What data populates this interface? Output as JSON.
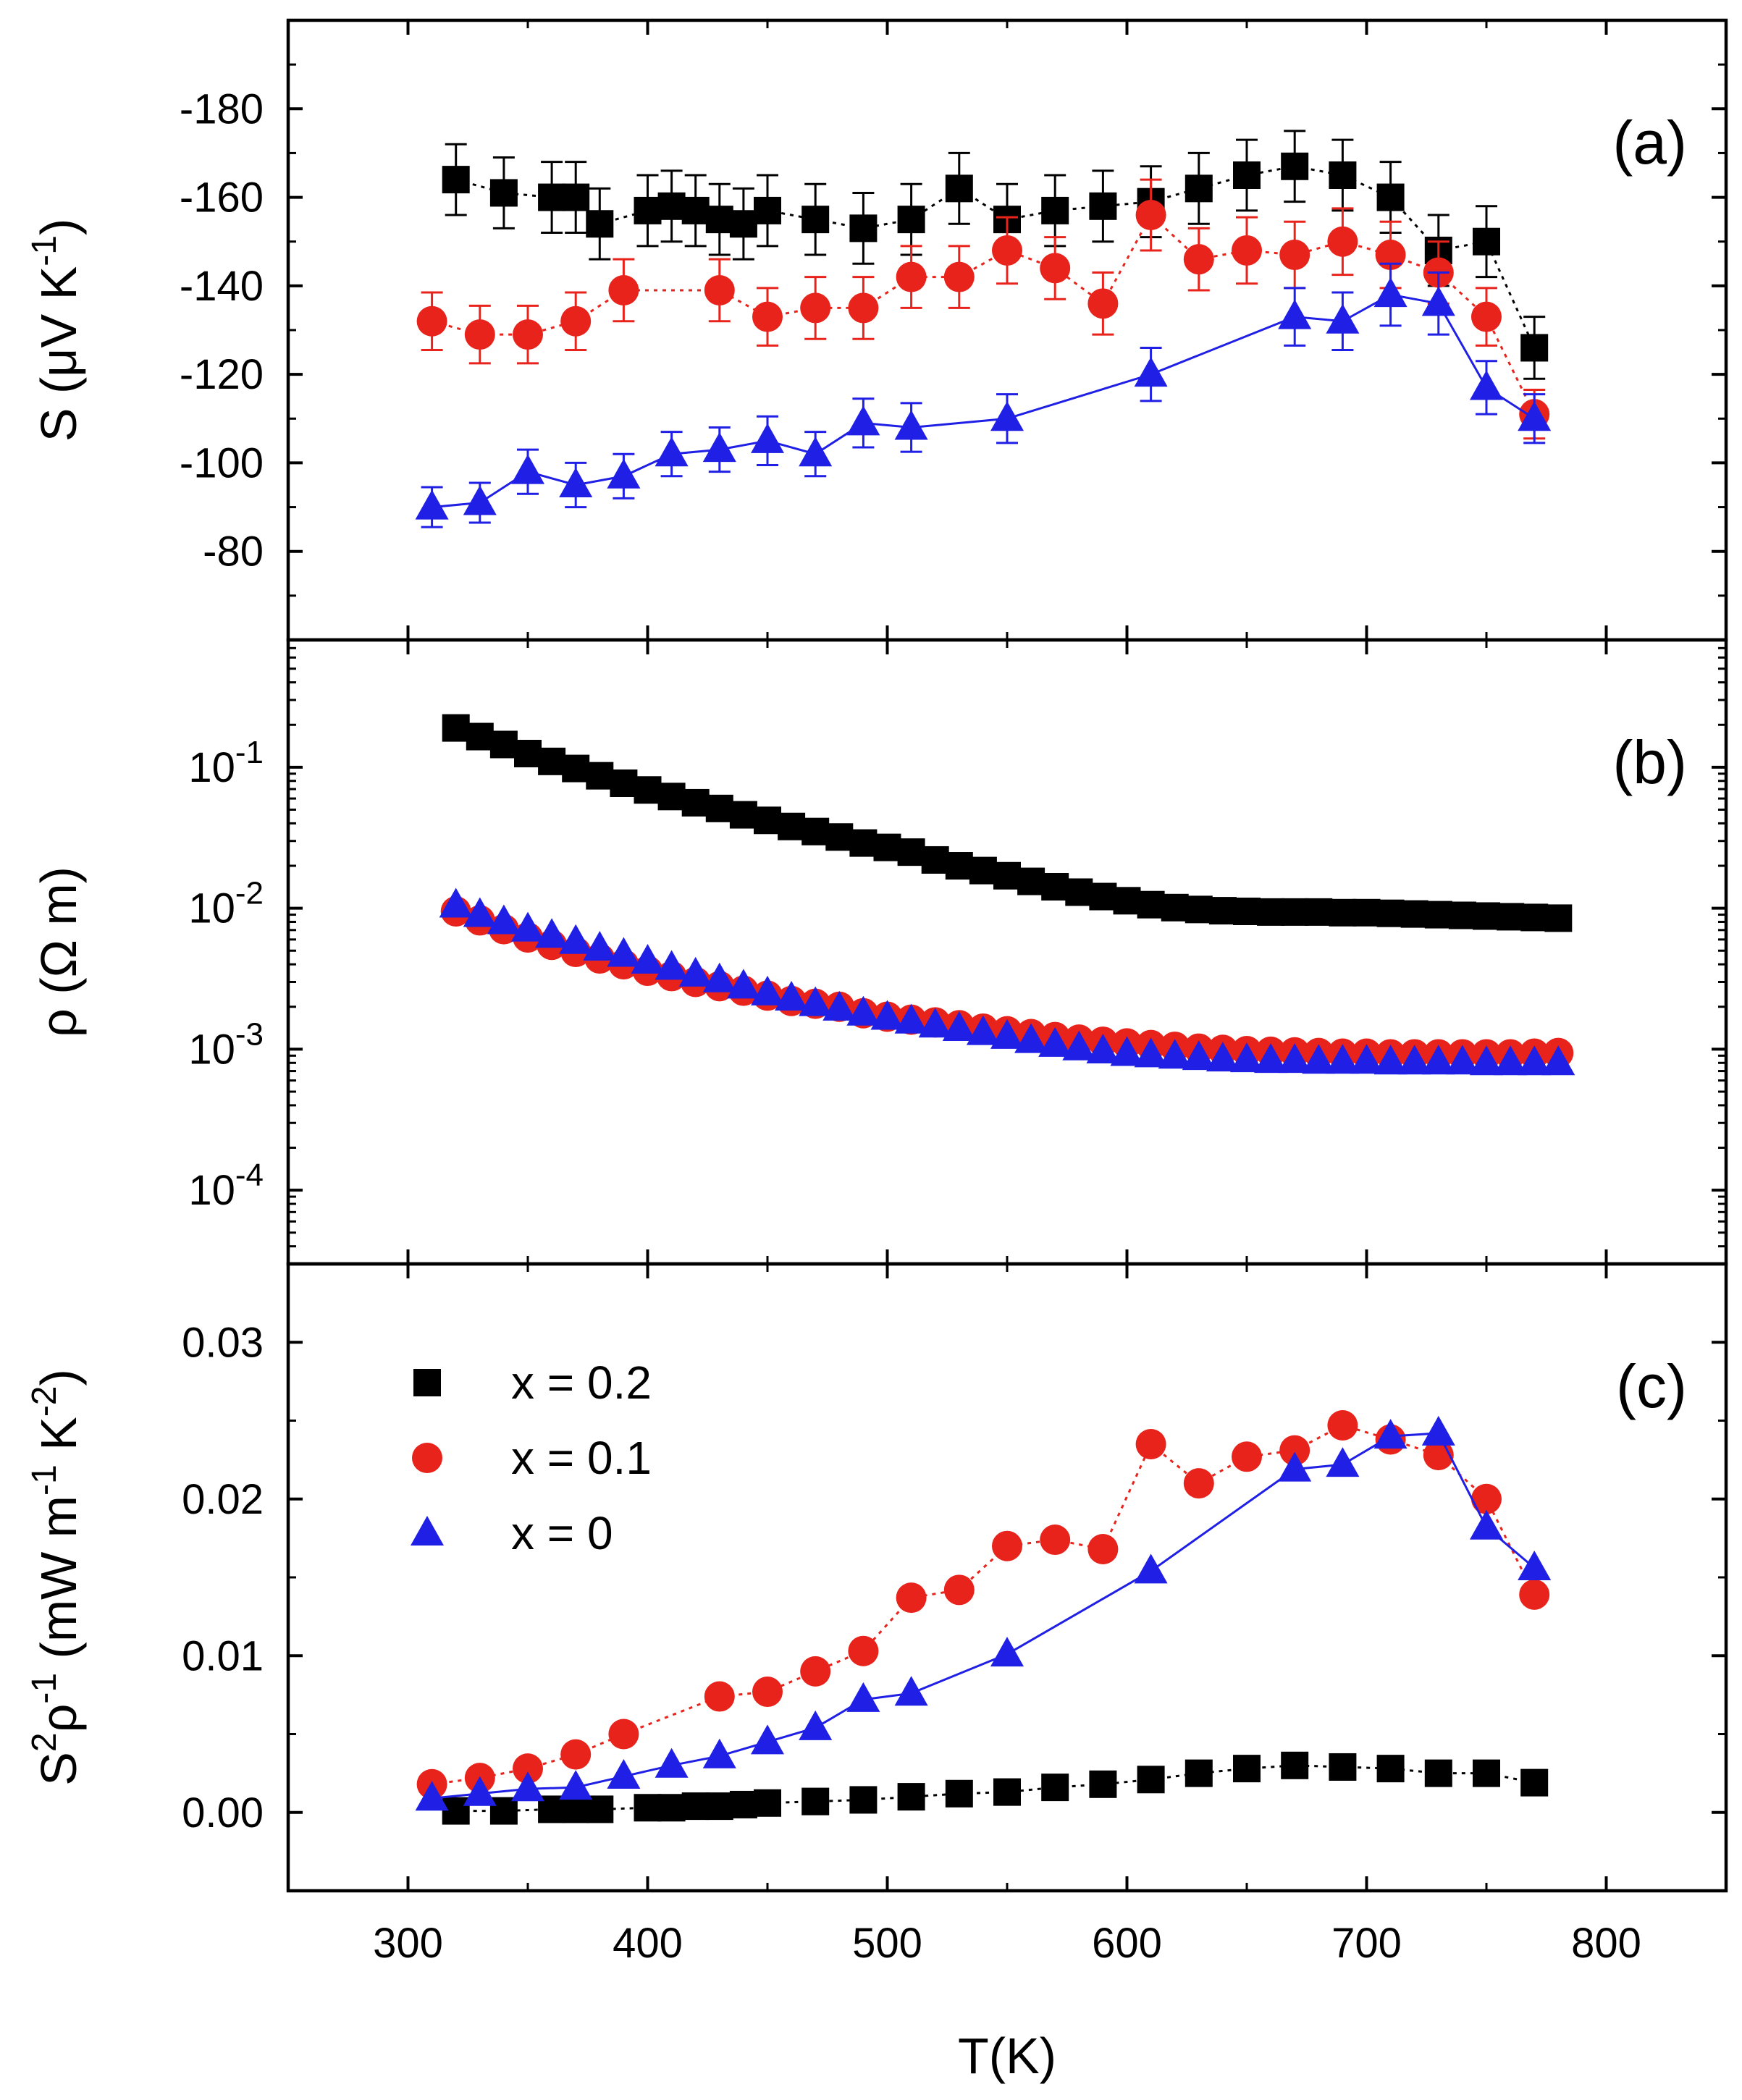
{
  "chart_data": [
    {
      "type": "scatter",
      "panel": "(a)",
      "panel_label": "(a)",
      "ylabel": "S (μV K⁻¹)",
      "ylabel_parts": {
        "base": "S (μV K",
        "sup": "-1",
        "end": ")"
      },
      "xlim": [
        250,
        850
      ],
      "ylim": [
        -60,
        -200
      ],
      "y_inverted": true,
      "y_ticks": [
        -180,
        -160,
        -140,
        -120,
        -100,
        -80
      ],
      "y_tick_labels": [
        "-180",
        "-160",
        "-140",
        "-120",
        "-100",
        "-80"
      ],
      "connected": true,
      "series": [
        {
          "name": "x = 0.2",
          "marker": "square",
          "color": "#000000",
          "x": [
            320,
            340,
            360,
            370,
            380,
            400,
            410,
            420,
            430,
            440,
            450,
            470,
            490,
            510,
            530,
            550,
            570,
            590,
            610,
            630,
            650,
            670,
            690,
            710,
            730,
            750,
            770
          ],
          "y": [
            -164,
            -161,
            -160,
            -160,
            -154,
            -157,
            -158,
            -157,
            -155,
            -154,
            -157,
            -155,
            -153,
            -155,
            -162,
            -155,
            -157,
            -158,
            -159,
            -162,
            -165,
            -167,
            -165,
            -160,
            -148,
            -150,
            -126
          ],
          "err": [
            8,
            8,
            8,
            8,
            8,
            8,
            8,
            8,
            8,
            8,
            8,
            8,
            8,
            8,
            8,
            8,
            8,
            8,
            8,
            8,
            8,
            8,
            8,
            8,
            8,
            8,
            7
          ]
        },
        {
          "name": "x = 0.1",
          "marker": "circle",
          "color": "#e8231b",
          "x": [
            310,
            330,
            350,
            370,
            390,
            430,
            450,
            470,
            490,
            510,
            530,
            550,
            570,
            590,
            610,
            630,
            650,
            670,
            690,
            710,
            730,
            750,
            770
          ],
          "y": [
            -132,
            -129,
            -129,
            -132,
            -139,
            -139,
            -133,
            -135,
            -135,
            -142,
            -142,
            -148,
            -144,
            -136,
            -156,
            -146,
            -148,
            -147,
            -150,
            -147,
            -143,
            -133,
            -111
          ],
          "err": [
            6.5,
            6.5,
            6.5,
            6.5,
            7,
            7,
            6.5,
            7,
            7,
            7,
            7,
            7.5,
            7,
            7,
            8,
            7,
            7.5,
            7.5,
            7.5,
            7.5,
            7,
            6.5,
            5.5
          ]
        },
        {
          "name": "x = 0",
          "marker": "triangle",
          "color": "#1f1fe6",
          "x": [
            310,
            330,
            350,
            370,
            390,
            410,
            430,
            450,
            470,
            490,
            510,
            550,
            610,
            670,
            690,
            710,
            730,
            750,
            770
          ],
          "y": [
            -90,
            -91,
            -98,
            -95,
            -97,
            -102,
            -103,
            -105,
            -102,
            -109,
            -108,
            -110,
            -120,
            -133,
            -132,
            -138,
            -136,
            -117,
            -110
          ],
          "err": [
            4.5,
            4.5,
            5,
            5,
            5,
            5,
            5,
            5.5,
            5,
            5.5,
            5.5,
            5.5,
            6,
            6.5,
            6.5,
            7,
            7,
            6,
            5.5
          ]
        }
      ]
    },
    {
      "type": "scatter",
      "panel": "(b)",
      "panel_label": "(b)",
      "ylabel": "ρ (Ω m)",
      "xlim": [
        250,
        850
      ],
      "y_scale": "log",
      "ylim": [
        3e-05,
        0.8
      ],
      "y_ticks": [
        0.1,
        0.01,
        0.001,
        0.0001
      ],
      "y_tick_labels": [
        {
          "base": "10",
          "exp": "-1"
        },
        {
          "base": "10",
          "exp": "-2"
        },
        {
          "base": "10",
          "exp": "-3"
        },
        {
          "base": "10",
          "exp": "-4"
        }
      ],
      "connected": false,
      "series": [
        {
          "name": "x = 0.2",
          "marker": "square",
          "color": "#000000",
          "x": [
            320,
            330,
            340,
            350,
            360,
            370,
            380,
            390,
            400,
            410,
            420,
            430,
            440,
            450,
            460,
            470,
            480,
            490,
            500,
            510,
            520,
            530,
            540,
            550,
            560,
            570,
            580,
            590,
            600,
            610,
            620,
            630,
            640,
            650,
            660,
            670,
            680,
            690,
            700,
            710,
            720,
            730,
            740,
            750,
            760,
            770,
            780
          ],
          "y": [
            0.19,
            0.165,
            0.145,
            0.125,
            0.11,
            0.098,
            0.087,
            0.077,
            0.069,
            0.062,
            0.056,
            0.051,
            0.046,
            0.042,
            0.038,
            0.035,
            0.032,
            0.029,
            0.027,
            0.025,
            0.022,
            0.02,
            0.0185,
            0.017,
            0.0155,
            0.0142,
            0.013,
            0.0121,
            0.0113,
            0.0106,
            0.0101,
            0.0098,
            0.0096,
            0.0095,
            0.0094,
            0.0094,
            0.0094,
            0.0093,
            0.0093,
            0.0092,
            0.0091,
            0.009,
            0.0089,
            0.0088,
            0.0087,
            0.0086,
            0.0085
          ]
        },
        {
          "name": "x = 0.1",
          "marker": "circle",
          "color": "#e8231b",
          "x": [
            320,
            330,
            340,
            350,
            360,
            370,
            380,
            390,
            400,
            410,
            420,
            430,
            440,
            450,
            460,
            470,
            480,
            490,
            500,
            510,
            520,
            530,
            540,
            550,
            560,
            570,
            580,
            590,
            600,
            610,
            620,
            630,
            640,
            650,
            660,
            670,
            680,
            690,
            700,
            710,
            720,
            730,
            740,
            750,
            760,
            770,
            780
          ],
          "y": [
            0.0095,
            0.0082,
            0.0071,
            0.0062,
            0.0055,
            0.0049,
            0.0044,
            0.004,
            0.0036,
            0.0033,
            0.003,
            0.0028,
            0.0026,
            0.0024,
            0.0022,
            0.0021,
            0.002,
            0.0018,
            0.0017,
            0.00162,
            0.00155,
            0.00148,
            0.0014,
            0.00134,
            0.00128,
            0.00122,
            0.00117,
            0.00113,
            0.0011,
            0.00107,
            0.00104,
            0.00101,
            0.00099,
            0.00097,
            0.00096,
            0.00095,
            0.00094,
            0.00093,
            0.00093,
            0.00092,
            0.00092,
            0.00092,
            0.00092,
            0.00092,
            0.00092,
            0.00093,
            0.00094
          ]
        },
        {
          "name": "x = 0",
          "marker": "triangle",
          "color": "#1f1fe6",
          "x": [
            320,
            330,
            340,
            350,
            360,
            370,
            380,
            390,
            400,
            410,
            420,
            430,
            440,
            450,
            460,
            470,
            480,
            490,
            500,
            510,
            520,
            530,
            540,
            550,
            560,
            570,
            580,
            590,
            600,
            610,
            620,
            630,
            640,
            650,
            660,
            670,
            680,
            690,
            700,
            710,
            720,
            730,
            740,
            750,
            760,
            770,
            780
          ],
          "y": [
            0.0105,
            0.009,
            0.008,
            0.0071,
            0.0064,
            0.0058,
            0.0052,
            0.0047,
            0.0042,
            0.0038,
            0.0034,
            0.0031,
            0.0028,
            0.0025,
            0.0023,
            0.0021,
            0.00195,
            0.0018,
            0.00168,
            0.00158,
            0.00148,
            0.0014,
            0.00131,
            0.00123,
            0.00115,
            0.00108,
            0.00102,
            0.00097,
            0.00093,
            0.00091,
            0.00089,
            0.00087,
            0.00085,
            0.00084,
            0.00083,
            0.00083,
            0.00082,
            0.00082,
            0.00082,
            0.00081,
            0.00081,
            0.00081,
            0.00081,
            0.0008,
            0.0008,
            0.0008,
            0.0008
          ]
        }
      ]
    },
    {
      "type": "scatter",
      "panel": "(c)",
      "panel_label": "(c)",
      "ylabel": "S²ρ⁻¹ (mW m⁻¹ K⁻²)",
      "ylabel_parts": {
        "s": "S",
        "sup1": "2",
        "rho": "ρ",
        "sup2": "-1",
        "mid": " (mW m",
        "sup3": "-1",
        "mid2": " K",
        "sup4": "-2",
        "end": ")"
      },
      "xlabel": "T(K)",
      "xlim": [
        250,
        850
      ],
      "ylim": [
        -0.005,
        0.035
      ],
      "y_ticks": [
        0.0,
        0.01,
        0.02,
        0.03
      ],
      "y_tick_labels": [
        "0.00",
        "0.01",
        "0.02",
        "0.03"
      ],
      "x_ticks": [
        300,
        400,
        500,
        600,
        700,
        800
      ],
      "x_tick_labels": [
        "300",
        "400",
        "500",
        "600",
        "700",
        "800"
      ],
      "connected": true,
      "legend": {
        "position": "top-left",
        "entries": [
          "x = 0.2",
          "x = 0.1",
          "x = 0"
        ]
      },
      "series": [
        {
          "name": "x = 0.2",
          "marker": "square",
          "color": "#000000",
          "x": [
            320,
            340,
            360,
            370,
            380,
            400,
            410,
            420,
            430,
            440,
            450,
            470,
            490,
            510,
            530,
            550,
            570,
            590,
            610,
            630,
            650,
            670,
            690,
            710,
            730,
            750,
            770
          ],
          "y": [
            0.0001,
            0.0001,
            0.0002,
            0.0002,
            0.0002,
            0.0003,
            0.0003,
            0.0004,
            0.0004,
            0.0005,
            0.0006,
            0.0007,
            0.0008,
            0.001,
            0.0012,
            0.0013,
            0.0016,
            0.0018,
            0.0021,
            0.0025,
            0.0028,
            0.003,
            0.0029,
            0.0028,
            0.0025,
            0.0025,
            0.0019
          ]
        },
        {
          "name": "x = 0.1",
          "marker": "circle",
          "color": "#e8231b",
          "x": [
            310,
            330,
            350,
            370,
            390,
            430,
            450,
            470,
            490,
            510,
            530,
            550,
            570,
            590,
            610,
            630,
            650,
            670,
            690,
            710,
            730,
            750,
            770
          ],
          "y": [
            0.0018,
            0.0022,
            0.0028,
            0.0037,
            0.005,
            0.0074,
            0.0077,
            0.009,
            0.0103,
            0.0137,
            0.0142,
            0.017,
            0.0174,
            0.0168,
            0.0235,
            0.021,
            0.0227,
            0.0231,
            0.0247,
            0.0238,
            0.0228,
            0.02,
            0.0139
          ]
        },
        {
          "name": "x = 0",
          "marker": "triangle",
          "color": "#1f1fe6",
          "x": [
            310,
            330,
            350,
            370,
            390,
            410,
            430,
            450,
            470,
            490,
            510,
            550,
            610,
            670,
            690,
            710,
            730,
            750,
            770
          ],
          "y": [
            0.0009,
            0.0012,
            0.0015,
            0.0016,
            0.0023,
            0.003,
            0.0036,
            0.0045,
            0.0054,
            0.0072,
            0.0076,
            0.0101,
            0.0154,
            0.0219,
            0.0222,
            0.024,
            0.0242,
            0.0182,
            0.0156
          ]
        }
      ]
    }
  ]
}
